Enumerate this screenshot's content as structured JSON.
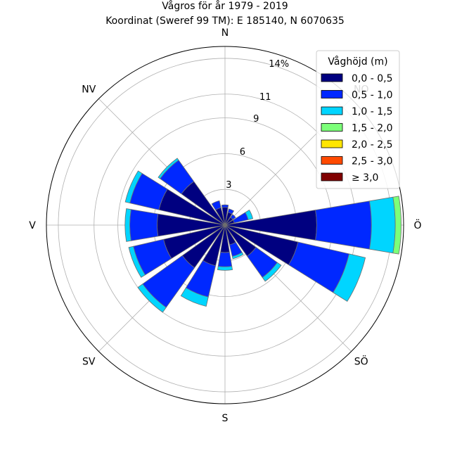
{
  "chart_data": {
    "type": "windrose",
    "title": "Vågros för år 1979 - 2019",
    "subtitle": "Koordinat (Sweref 99 TM): E 185140, N 6070635",
    "unit": "%",
    "directions": [
      "N",
      "NNO",
      "NO",
      "ONO",
      "Ö",
      "OSO",
      "SÖ",
      "SSO",
      "S",
      "SSV",
      "SV",
      "VSV",
      "V",
      "VNV",
      "NV",
      "NNV"
    ],
    "compass_labels": [
      {
        "angle": 0,
        "text": "N"
      },
      {
        "angle": 45,
        "text": "NO"
      },
      {
        "angle": 90,
        "text": "Ö"
      },
      {
        "angle": 135,
        "text": "SÖ"
      },
      {
        "angle": 180,
        "text": "S"
      },
      {
        "angle": 225,
        "text": "SV"
      },
      {
        "angle": 270,
        "text": "V"
      },
      {
        "angle": 315,
        "text": "NV"
      }
    ],
    "radial_ticks": [
      3,
      6,
      9,
      11,
      14
    ],
    "radial_tick_labels": [
      "3",
      "6",
      "9",
      "11",
      "14%"
    ],
    "rmax": 15,
    "legend_title": "Våghöjd (m)",
    "legend_position": "top-right",
    "series": [
      {
        "name": "0,0 - 0,5",
        "color": "#000080",
        "values": [
          1.5,
          1.1,
          0.8,
          0.8,
          7.7,
          6.3,
          3.2,
          1.7,
          2.3,
          3.5,
          4.4,
          5.3,
          5.7,
          5.7,
          4.5,
          1.5
        ]
      },
      {
        "name": "0,5 - 1,0",
        "color": "#0028ff",
        "values": [
          0.2,
          0.3,
          0.3,
          1.2,
          4.6,
          4.4,
          2.2,
          1.0,
          1.2,
          2.7,
          4.1,
          2.6,
          2.3,
          2.5,
          2.2,
          0.6
        ]
      },
      {
        "name": "1,0 - 1,5",
        "color": "#00d5ff",
        "values": [
          0,
          0,
          0,
          0.4,
          2.0,
          1.4,
          0.4,
          0.2,
          0.3,
          0.8,
          0.5,
          0.4,
          0.4,
          0.4,
          0.2,
          0
        ]
      },
      {
        "name": "1,5 - 2,0",
        "color": "#7cff79",
        "values": [
          0,
          0,
          0,
          0,
          0.5,
          0,
          0,
          0,
          0,
          0,
          0,
          0,
          0,
          0,
          0,
          0
        ]
      },
      {
        "name": "2,0 - 2,5",
        "color": "#ffe600",
        "values": [
          0,
          0,
          0,
          0,
          0,
          0,
          0,
          0,
          0,
          0,
          0,
          0,
          0,
          0,
          0,
          0
        ]
      },
      {
        "name": "2,5 - 3,0",
        "color": "#ff4a00",
        "values": [
          0,
          0,
          0,
          0,
          0,
          0,
          0,
          0,
          0,
          0,
          0,
          0,
          0,
          0,
          0,
          0
        ]
      },
      {
        "name": "≥ 3,0",
        "color": "#800000",
        "values": [
          0,
          0,
          0,
          0,
          0,
          0,
          0,
          0,
          0,
          0,
          0,
          0,
          0,
          0,
          0,
          0
        ]
      }
    ]
  }
}
